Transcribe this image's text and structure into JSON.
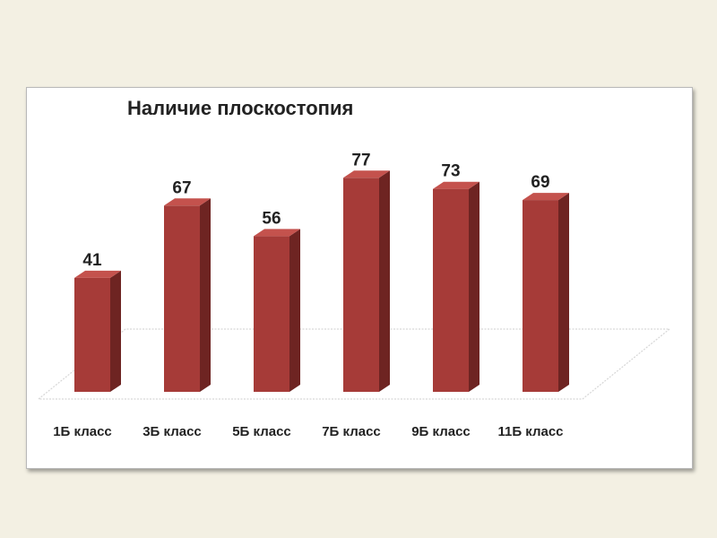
{
  "colors": {
    "bar_front": "#a63b38",
    "bar_side": "#6e2422",
    "bar_top": "#c4524d",
    "floor_edge": "#d6d6d6"
  },
  "chart_data": {
    "type": "bar",
    "title": "Наличие плоскостопия",
    "categories": [
      "1Б класс",
      "3Б класс",
      "5Б класс",
      "7Б класс",
      "9Б класс",
      "11Б класс"
    ],
    "values": [
      41,
      67,
      56,
      77,
      73,
      69
    ],
    "data_labels": [
      "41",
      "67",
      "56",
      "77",
      "73",
      "69"
    ],
    "xlabel": "",
    "ylabel": "",
    "ylim": [
      0,
      77
    ],
    "grid": false,
    "legend": "none",
    "style": "3d-column"
  }
}
